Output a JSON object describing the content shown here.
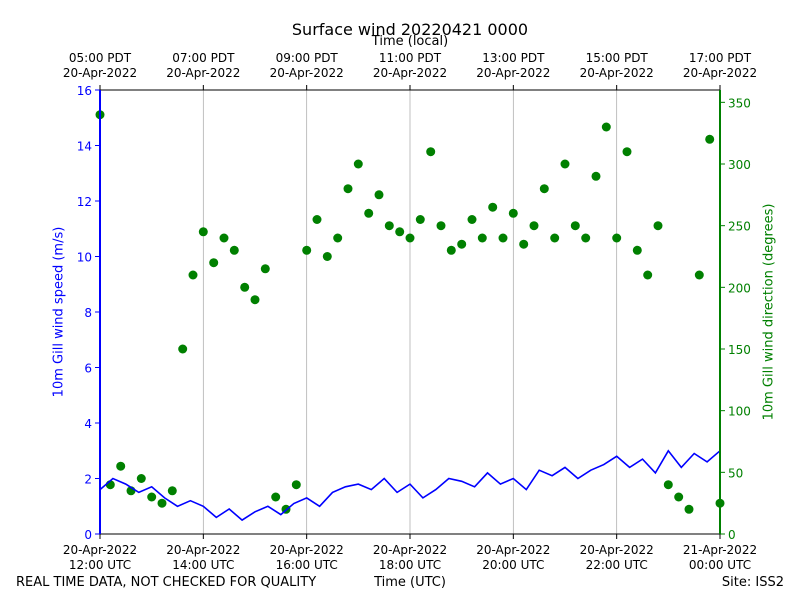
{
  "chart": {
    "title": "Surface wind 20220421 0000",
    "top_axis_title": "Time (local)",
    "xlabel": "Time (UTC)",
    "ylabel_left": "10m Gill wind speed (m/s)",
    "ylabel_right": "10m Gill wind direction (degrees)",
    "footer_left": "REAL TIME DATA, NOT CHECKED FOR QUALITY",
    "footer_right": "Site: ISS2"
  },
  "chart_data": {
    "type": "line",
    "x_range_hours_utc": [
      12.0,
      24.0
    ],
    "bottom_ticks": [
      {
        "hour": 12,
        "line1": "20-Apr-2022",
        "line2": "12:00 UTC"
      },
      {
        "hour": 14,
        "line1": "20-Apr-2022",
        "line2": "14:00 UTC"
      },
      {
        "hour": 16,
        "line1": "20-Apr-2022",
        "line2": "16:00 UTC"
      },
      {
        "hour": 18,
        "line1": "20-Apr-2022",
        "line2": "18:00 UTC"
      },
      {
        "hour": 20,
        "line1": "20-Apr-2022",
        "line2": "20:00 UTC"
      },
      {
        "hour": 22,
        "line1": "20-Apr-2022",
        "line2": "22:00 UTC"
      },
      {
        "hour": 24,
        "line1": "21-Apr-2022",
        "line2": "00:00 UTC"
      }
    ],
    "top_ticks": [
      {
        "hour": 12,
        "line1": "05:00 PDT",
        "line2": "20-Apr-2022"
      },
      {
        "hour": 14,
        "line1": "07:00 PDT",
        "line2": "20-Apr-2022"
      },
      {
        "hour": 16,
        "line1": "09:00 PDT",
        "line2": "20-Apr-2022"
      },
      {
        "hour": 18,
        "line1": "11:00 PDT",
        "line2": "20-Apr-2022"
      },
      {
        "hour": 20,
        "line1": "13:00 PDT",
        "line2": "20-Apr-2022"
      },
      {
        "hour": 22,
        "line1": "15:00 PDT",
        "line2": "20-Apr-2022"
      },
      {
        "hour": 24,
        "line1": "17:00 PDT",
        "line2": "20-Apr-2022"
      }
    ],
    "y_left": {
      "range": [
        0,
        16
      ],
      "ticks": [
        0,
        2,
        4,
        6,
        8,
        10,
        12,
        14,
        16
      ],
      "color": "#0000ff"
    },
    "y_right": {
      "range": [
        0,
        360
      ],
      "ticks": [
        0,
        50,
        100,
        150,
        200,
        250,
        300,
        350
      ],
      "color": "#008000"
    },
    "grid": "vertical",
    "series": [
      {
        "name": "10m Gill wind speed (m/s)",
        "kind": "line",
        "axis": "left",
        "color": "#0000ff",
        "x": [
          12.0,
          12.25,
          12.5,
          12.75,
          13.0,
          13.25,
          13.5,
          13.75,
          14.0,
          14.25,
          14.5,
          14.75,
          15.0,
          15.25,
          15.5,
          15.75,
          16.0,
          16.25,
          16.5,
          16.75,
          17.0,
          17.25,
          17.5,
          17.75,
          18.0,
          18.25,
          18.5,
          18.75,
          19.0,
          19.25,
          19.5,
          19.75,
          20.0,
          20.25,
          20.5,
          20.75,
          21.0,
          21.25,
          21.5,
          21.75,
          22.0,
          22.25,
          22.5,
          22.75,
          23.0,
          23.25,
          23.5,
          23.75,
          24.0
        ],
        "values": [
          1.6,
          2.0,
          1.8,
          1.5,
          1.7,
          1.3,
          1.0,
          1.2,
          1.0,
          0.6,
          0.9,
          0.5,
          0.8,
          1.0,
          0.7,
          1.1,
          1.3,
          1.0,
          1.5,
          1.7,
          1.8,
          1.6,
          2.0,
          1.5,
          1.8,
          1.3,
          1.6,
          2.0,
          1.9,
          1.7,
          2.2,
          1.8,
          2.0,
          1.6,
          2.3,
          2.1,
          2.4,
          2.0,
          2.3,
          2.5,
          2.8,
          2.4,
          2.7,
          2.2,
          3.0,
          2.4,
          2.9,
          2.6,
          3.0
        ]
      },
      {
        "name": "10m Gill wind direction (degrees)",
        "kind": "scatter",
        "axis": "right",
        "color": "#008000",
        "x": [
          12.0,
          12.2,
          12.4,
          12.6,
          12.8,
          13.0,
          13.2,
          13.4,
          13.6,
          13.8,
          14.0,
          14.2,
          14.4,
          14.6,
          14.8,
          15.0,
          15.2,
          15.4,
          15.6,
          15.8,
          16.0,
          16.2,
          16.4,
          16.6,
          16.8,
          17.0,
          17.2,
          17.4,
          17.6,
          17.8,
          18.0,
          18.2,
          18.4,
          18.6,
          18.8,
          19.0,
          19.2,
          19.4,
          19.6,
          19.8,
          20.0,
          20.2,
          20.4,
          20.6,
          20.8,
          21.0,
          21.2,
          21.4,
          21.6,
          21.8,
          22.0,
          22.2,
          22.4,
          22.6,
          22.8,
          23.0,
          23.2,
          23.4,
          23.6,
          23.8,
          24.0
        ],
        "values": [
          340,
          40,
          55,
          35,
          45,
          30,
          25,
          35,
          150,
          210,
          245,
          220,
          240,
          230,
          200,
          190,
          215,
          30,
          20,
          40,
          230,
          255,
          225,
          240,
          280,
          300,
          260,
          275,
          250,
          245,
          240,
          255,
          310,
          250,
          230,
          235,
          255,
          240,
          265,
          240,
          260,
          235,
          250,
          280,
          240,
          300,
          250,
          240,
          290,
          330,
          240,
          310,
          230,
          210,
          250,
          40,
          30,
          20,
          210,
          320,
          25
        ]
      }
    ]
  }
}
